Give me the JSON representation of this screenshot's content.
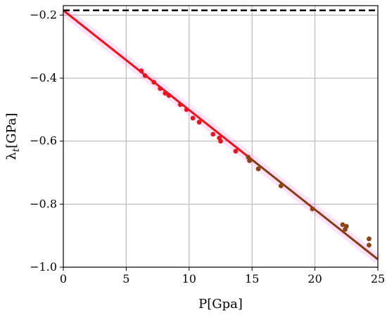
{
  "chart_data": {
    "type": "scatter",
    "title": "",
    "xlabel": "P[Gpa]",
    "ylabel": "λ",
    "ylabel_sub": "t",
    "ylabel_unit": "[GPa]",
    "xlim": [
      0,
      25
    ],
    "ylim": [
      -1.0,
      -0.17
    ],
    "xticks": [
      0,
      5,
      10,
      15,
      20,
      25
    ],
    "yticks": [
      -1.0,
      -0.8,
      -0.6,
      -0.4,
      -0.2
    ],
    "ytick_labels": [
      "−1.0",
      "−0.8",
      "−0.6",
      "−0.4",
      "−0.2"
    ],
    "grid": true,
    "reference_line": {
      "y": -0.185,
      "style": "dashed",
      "color": "#000000"
    },
    "fit_lines": [
      {
        "x": [
          0,
          15
        ],
        "y": [
          -0.185,
          -0.659
        ],
        "color": "#ee1111"
      },
      {
        "x": [
          15,
          25
        ],
        "y": [
          -0.659,
          -0.975
        ],
        "color": "#8b3a0e"
      }
    ],
    "series": [
      {
        "color": "#e8151f",
        "points": [
          [
            6.2,
            -0.377
          ],
          [
            6.5,
            -0.392
          ],
          [
            7.2,
            -0.413
          ],
          [
            7.7,
            -0.433
          ],
          [
            8.1,
            -0.448
          ],
          [
            8.4,
            -0.455
          ],
          [
            9.3,
            -0.484
          ],
          [
            9.8,
            -0.5
          ],
          [
            10.3,
            -0.527
          ],
          [
            10.8,
            -0.54
          ],
          [
            11.9,
            -0.578
          ],
          [
            12.4,
            -0.59
          ],
          [
            12.5,
            -0.6
          ],
          [
            13.7,
            -0.632
          ]
        ]
      },
      {
        "color": "#8b4513",
        "points": [
          [
            14.7,
            -0.651
          ],
          [
            14.8,
            -0.662
          ],
          [
            15.5,
            -0.688
          ],
          [
            17.3,
            -0.742
          ],
          [
            19.8,
            -0.815
          ],
          [
            22.2,
            -0.865
          ],
          [
            22.5,
            -0.87
          ],
          [
            22.4,
            -0.88
          ],
          [
            24.3,
            -0.91
          ],
          [
            24.3,
            -0.93
          ]
        ]
      }
    ]
  }
}
